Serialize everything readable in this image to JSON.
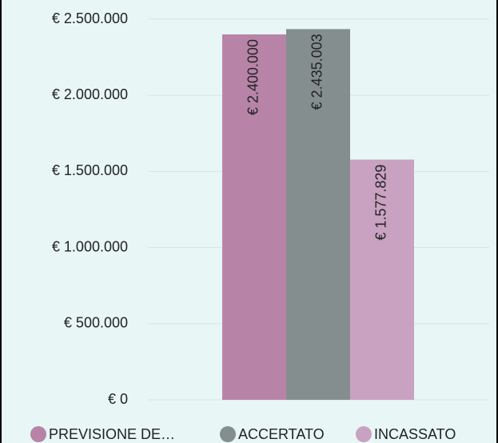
{
  "chart_data": {
    "type": "bar",
    "categories": [
      null
    ],
    "series": [
      {
        "name": "PREVISIONE DE…",
        "color": "#b784a7",
        "values": [
          2400000
        ],
        "value_labels": [
          "€ 2.400.000"
        ]
      },
      {
        "name": "ACCERTATO",
        "color": "#848e8e",
        "values": [
          2435003
        ],
        "value_labels": [
          "€ 2.435.003"
        ]
      },
      {
        "name": "INCASSATO",
        "color": "#c8a2c0",
        "values": [
          1577829
        ],
        "value_labels": [
          "€ 1.577.829"
        ]
      }
    ],
    "ylim": [
      0,
      2500000
    ],
    "yticks": [
      {
        "value": 0,
        "label": "€ 0"
      },
      {
        "value": 500000,
        "label": "€ 500.000"
      },
      {
        "value": 1000000,
        "label": "€ 1.000.000"
      },
      {
        "value": 1500000,
        "label": "€ 1.500.000"
      },
      {
        "value": 2000000,
        "label": "€ 2.000.000"
      },
      {
        "value": 2500000,
        "label": "€ 2.500.000"
      }
    ],
    "grid": true,
    "legend": "bottom"
  }
}
